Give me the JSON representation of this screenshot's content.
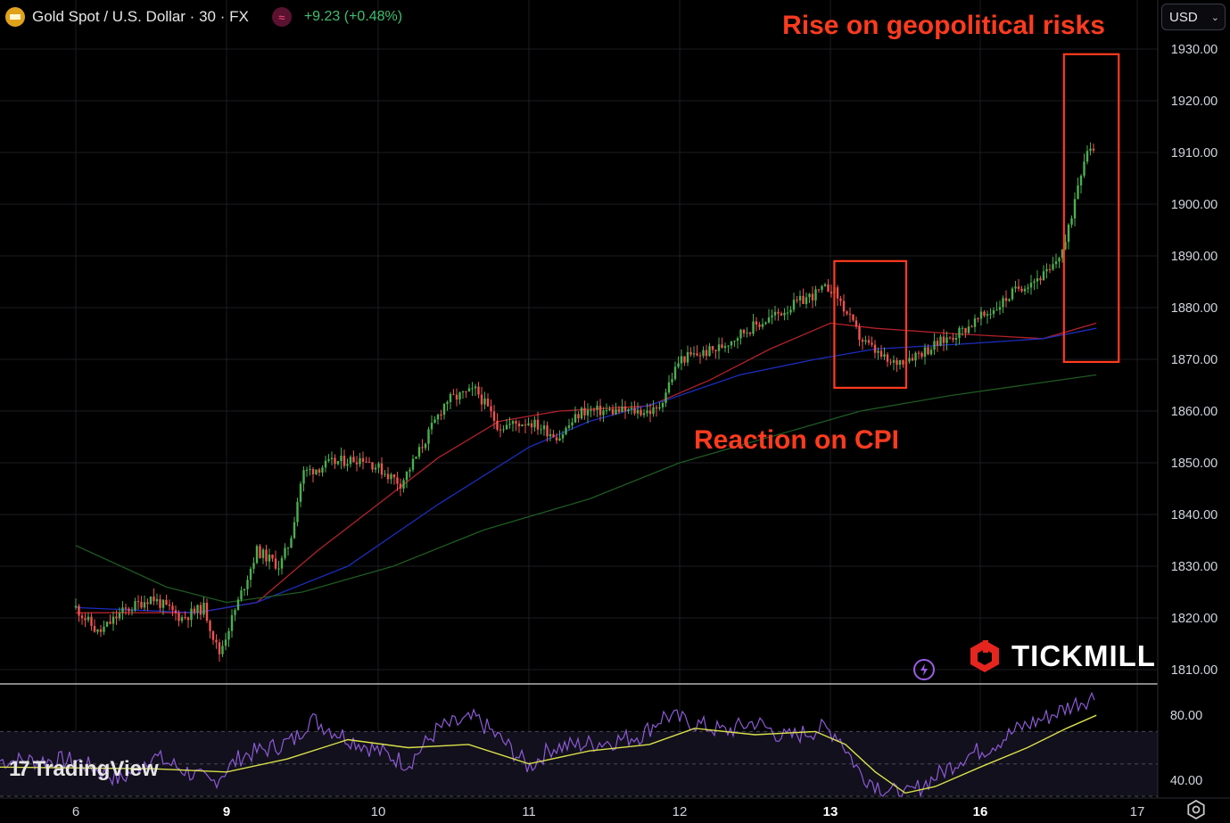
{
  "header": {
    "symbol_title": "Gold Spot / U.S. Dollar · 30 · FX",
    "change_text": "+9.23 (+0.48%)",
    "symbol_icon": "gold-bar-icon",
    "indicator_icon": "wave-icon"
  },
  "currency_selector": {
    "value": "USD"
  },
  "brand": {
    "tradingview": "TradingView",
    "tickmill": "TICKMILL"
  },
  "colors": {
    "background": "#000000",
    "candle_up": "#4caf50",
    "candle_down": "#ef5350",
    "ma_fast": "#b2222b",
    "ma_mid": "#1b2dbd",
    "ma_slow": "#1f5a22",
    "rsi_line": "#8d5ad6",
    "rsi_signal": "#d9e04a",
    "annotation": "#ff3b1f",
    "grid": "#1b1d22"
  },
  "chart_data": {
    "type": "candlestick",
    "interval": "30m",
    "y_axis": {
      "ticks": [
        "1810.00",
        "1820.00",
        "1830.00",
        "1840.00",
        "1850.00",
        "1860.00",
        "1870.00",
        "1880.00",
        "1890.00",
        "1900.00",
        "1910.00",
        "1920.00",
        "1930.00"
      ],
      "range": [
        1807.5,
        1934
      ]
    },
    "x_axis": {
      "ticks": [
        "6",
        "9",
        "10",
        "11",
        "12",
        "13",
        "16",
        "17"
      ],
      "bold_ticks": [
        "9",
        "13",
        "16"
      ]
    },
    "price_path": [
      [
        6,
        1822
      ],
      [
        6.15,
        1817
      ],
      [
        6.3,
        1821
      ],
      [
        6.5,
        1824
      ],
      [
        6.7,
        1820
      ],
      [
        6.85,
        1822
      ],
      [
        6.95,
        1813
      ],
      [
        7.2,
        1833
      ],
      [
        7.35,
        1830
      ],
      [
        7.42,
        1835
      ],
      [
        7.5,
        1848
      ],
      [
        7.7,
        1850
      ],
      [
        7.9,
        1851
      ],
      [
        8.15,
        1846
      ],
      [
        8.25,
        1851
      ],
      [
        8.45,
        1862
      ],
      [
        8.65,
        1864
      ],
      [
        8.8,
        1857
      ],
      [
        9.0,
        1858
      ],
      [
        9.2,
        1855
      ],
      [
        9.35,
        1860
      ],
      [
        9.5,
        1860
      ],
      [
        9.7,
        1860
      ],
      [
        9.85,
        1860
      ],
      [
        10.0,
        1870
      ],
      [
        10.25,
        1872
      ],
      [
        10.4,
        1875
      ],
      [
        10.6,
        1878
      ],
      [
        10.85,
        1882
      ],
      [
        11.0,
        1884
      ],
      [
        11.05,
        1882
      ],
      [
        11.2,
        1874
      ],
      [
        11.4,
        1869
      ],
      [
        11.65,
        1872
      ],
      [
        11.9,
        1876
      ],
      [
        12.1,
        1880
      ],
      [
        12.25,
        1884
      ],
      [
        12.45,
        1887
      ],
      [
        12.55,
        1893
      ],
      [
        12.62,
        1904
      ],
      [
        12.68,
        1911
      ],
      [
        12.74,
        1911
      ]
    ],
    "moving_averages": [
      {
        "color_key": "ma_fast",
        "points": [
          [
            6,
            1821
          ],
          [
            6.8,
            1821
          ],
          [
            7.2,
            1823
          ],
          [
            7.6,
            1833
          ],
          [
            8.0,
            1842
          ],
          [
            8.4,
            1851
          ],
          [
            8.8,
            1858
          ],
          [
            9.2,
            1860
          ],
          [
            9.8,
            1861
          ],
          [
            10.2,
            1866
          ],
          [
            10.6,
            1872
          ],
          [
            11.0,
            1877
          ],
          [
            11.3,
            1876
          ],
          [
            11.8,
            1875
          ],
          [
            12.4,
            1874
          ],
          [
            12.74,
            1877
          ]
        ]
      },
      {
        "color_key": "ma_mid",
        "points": [
          [
            6,
            1822
          ],
          [
            6.8,
            1821
          ],
          [
            7.2,
            1823
          ],
          [
            7.8,
            1830
          ],
          [
            8.4,
            1842
          ],
          [
            9.0,
            1853
          ],
          [
            9.4,
            1858
          ],
          [
            9.9,
            1862
          ],
          [
            10.4,
            1867
          ],
          [
            10.9,
            1870
          ],
          [
            11.3,
            1872
          ],
          [
            11.9,
            1873
          ],
          [
            12.4,
            1874
          ],
          [
            12.74,
            1876
          ]
        ]
      },
      {
        "color_key": "ma_slow",
        "points": [
          [
            6,
            1834
          ],
          [
            6.6,
            1826
          ],
          [
            7.0,
            1823
          ],
          [
            7.5,
            1825
          ],
          [
            8.1,
            1830
          ],
          [
            8.7,
            1837
          ],
          [
            9.4,
            1843
          ],
          [
            10.0,
            1850
          ],
          [
            10.6,
            1855
          ],
          [
            11.2,
            1860
          ],
          [
            11.8,
            1863
          ],
          [
            12.74,
            1867
          ]
        ]
      }
    ],
    "rsi": {
      "ticks": [
        "80.00",
        "40.00"
      ],
      "range": [
        30,
        95
      ],
      "upper_band": 70,
      "lower_band": 30,
      "line": [
        [
          6,
          52
        ],
        [
          6.3,
          40
        ],
        [
          6.5,
          55
        ],
        [
          6.7,
          47
        ],
        [
          6.9,
          38
        ],
        [
          7.1,
          55
        ],
        [
          7.3,
          60
        ],
        [
          7.45,
          65
        ],
        [
          7.55,
          78
        ],
        [
          7.8,
          66
        ],
        [
          8.2,
          50
        ],
        [
          8.4,
          72
        ],
        [
          8.65,
          78
        ],
        [
          8.85,
          62
        ],
        [
          9.0,
          48
        ],
        [
          9.15,
          60
        ],
        [
          9.35,
          62
        ],
        [
          9.55,
          64
        ],
        [
          9.75,
          68
        ],
        [
          9.9,
          80
        ],
        [
          10.1,
          75
        ],
        [
          10.3,
          70
        ],
        [
          10.5,
          76
        ],
        [
          10.7,
          66
        ],
        [
          10.95,
          72
        ],
        [
          11.05,
          68
        ],
        [
          11.2,
          44
        ],
        [
          11.35,
          35
        ],
        [
          11.5,
          30
        ],
        [
          11.7,
          42
        ],
        [
          11.9,
          55
        ],
        [
          12.05,
          60
        ],
        [
          12.25,
          72
        ],
        [
          12.45,
          80
        ],
        [
          12.62,
          88
        ],
        [
          12.74,
          92
        ]
      ],
      "signal": [
        [
          6,
          48
        ],
        [
          6.5,
          47
        ],
        [
          7.0,
          45
        ],
        [
          7.4,
          53
        ],
        [
          7.8,
          65
        ],
        [
          8.2,
          60
        ],
        [
          8.6,
          62
        ],
        [
          9.0,
          50
        ],
        [
          9.4,
          58
        ],
        [
          9.8,
          62
        ],
        [
          10.1,
          72
        ],
        [
          10.5,
          68
        ],
        [
          10.9,
          70
        ],
        [
          11.1,
          62
        ],
        [
          11.3,
          45
        ],
        [
          11.5,
          32
        ],
        [
          11.7,
          36
        ],
        [
          12.0,
          48
        ],
        [
          12.3,
          60
        ],
        [
          12.55,
          72
        ],
        [
          12.74,
          80
        ]
      ]
    },
    "annotations": [
      {
        "text": "Rise on geopolitical risks",
        "target": "final rally on 13"
      },
      {
        "text": "Reaction on CPI",
        "target": "dip late on 12"
      }
    ]
  }
}
